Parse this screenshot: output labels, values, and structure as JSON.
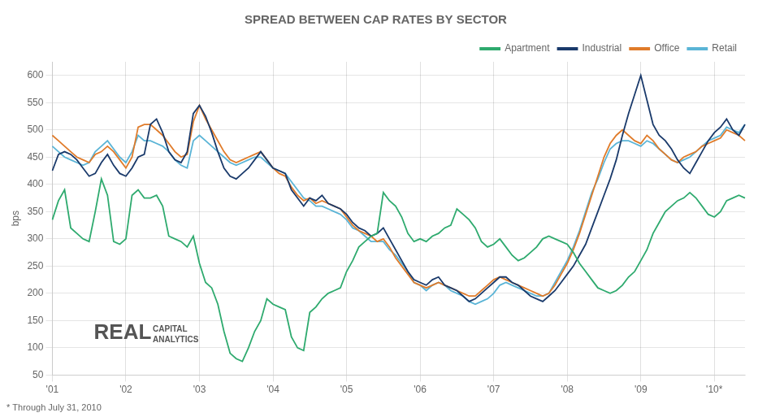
{
  "chart_data": {
    "type": "line",
    "title": "SPREAD BETWEEN CAP RATES BY SECTOR",
    "ylabel": "bps",
    "footnote": "* Through July 31, 2010",
    "annotations": [
      "REAL",
      "CAPITAL\nANALYTICS"
    ],
    "categories": [
      "'01",
      null,
      null,
      null,
      null,
      null,
      null,
      null,
      null,
      null,
      null,
      null,
      "'02",
      null,
      null,
      null,
      null,
      null,
      null,
      null,
      null,
      null,
      null,
      null,
      "'03",
      null,
      null,
      null,
      null,
      null,
      null,
      null,
      null,
      null,
      null,
      null,
      "'04",
      null,
      null,
      null,
      null,
      null,
      null,
      null,
      null,
      null,
      null,
      null,
      "'05",
      null,
      null,
      null,
      null,
      null,
      null,
      null,
      null,
      null,
      null,
      null,
      "'06",
      null,
      null,
      null,
      null,
      null,
      null,
      null,
      null,
      null,
      null,
      null,
      "'07",
      null,
      null,
      null,
      null,
      null,
      null,
      null,
      null,
      null,
      null,
      null,
      "'08",
      null,
      null,
      null,
      null,
      null,
      null,
      null,
      null,
      null,
      null,
      null,
      "'09",
      null,
      null,
      null,
      null,
      null,
      null,
      null,
      null,
      null,
      null,
      null,
      "'10*",
      null,
      null,
      null,
      null,
      null
    ],
    "ylim": [
      50,
      625
    ],
    "yticks": [
      50,
      100,
      150,
      200,
      250,
      300,
      350,
      400,
      450,
      500,
      550,
      600
    ],
    "grid": true,
    "legend": "upper right",
    "series": [
      {
        "name": "Apartment",
        "color": "#2eaa6e",
        "values": [
          335,
          370,
          390,
          320,
          310,
          300,
          295,
          350,
          410,
          380,
          295,
          290,
          300,
          380,
          390,
          375,
          375,
          380,
          360,
          305,
          300,
          295,
          285,
          305,
          255,
          220,
          210,
          180,
          130,
          90,
          80,
          75,
          100,
          130,
          150,
          190,
          180,
          175,
          170,
          120,
          100,
          95,
          165,
          175,
          190,
          200,
          205,
          210,
          240,
          260,
          285,
          295,
          305,
          310,
          385,
          370,
          360,
          340,
          310,
          295,
          300,
          295,
          305,
          310,
          320,
          325,
          355,
          345,
          335,
          320,
          295,
          285,
          290,
          300,
          285,
          270,
          260,
          265,
          275,
          285,
          300,
          305,
          300,
          295,
          290,
          275,
          255,
          240,
          225,
          210,
          205,
          200,
          205,
          215,
          230,
          240,
          260,
          280,
          310,
          330,
          350,
          360,
          370,
          375,
          385,
          375,
          360,
          345,
          340,
          350,
          370,
          375,
          380,
          375
        ]
      },
      {
        "name": "Industrial",
        "color": "#1a3a6b",
        "values": [
          425,
          455,
          460,
          455,
          445,
          430,
          415,
          420,
          440,
          455,
          435,
          420,
          415,
          430,
          450,
          455,
          510,
          520,
          495,
          460,
          445,
          440,
          460,
          530,
          545,
          525,
          495,
          460,
          430,
          415,
          410,
          420,
          430,
          445,
          460,
          445,
          430,
          425,
          420,
          390,
          375,
          360,
          375,
          370,
          380,
          365,
          360,
          355,
          345,
          330,
          320,
          315,
          305,
          310,
          320,
          300,
          280,
          260,
          240,
          225,
          220,
          215,
          225,
          230,
          215,
          210,
          205,
          195,
          185,
          190,
          200,
          210,
          220,
          230,
          230,
          220,
          215,
          205,
          195,
          190,
          185,
          195,
          205,
          220,
          235,
          250,
          270,
          290,
          320,
          350,
          380,
          410,
          445,
          490,
          530,
          565,
          600,
          555,
          510,
          490,
          480,
          465,
          445,
          430,
          420,
          440,
          460,
          480,
          495,
          505,
          520,
          500,
          490,
          510
        ]
      },
      {
        "name": "Office",
        "color": "#e07b2a",
        "values": [
          490,
          480,
          470,
          460,
          450,
          445,
          440,
          455,
          460,
          470,
          460,
          445,
          430,
          450,
          505,
          510,
          510,
          500,
          490,
          475,
          460,
          450,
          455,
          515,
          545,
          520,
          500,
          480,
          460,
          445,
          440,
          445,
          450,
          455,
          460,
          445,
          430,
          420,
          415,
          395,
          380,
          370,
          375,
          365,
          370,
          365,
          360,
          355,
          340,
          325,
          315,
          310,
          305,
          295,
          300,
          285,
          265,
          250,
          235,
          220,
          215,
          210,
          215,
          220,
          215,
          210,
          205,
          200,
          195,
          195,
          205,
          215,
          225,
          230,
          225,
          220,
          215,
          210,
          205,
          200,
          195,
          200,
          215,
          235,
          255,
          280,
          310,
          345,
          380,
          415,
          450,
          475,
          490,
          500,
          490,
          480,
          475,
          490,
          480,
          465,
          455,
          445,
          440,
          450,
          455,
          460,
          470,
          475,
          480,
          485,
          500,
          495,
          490,
          480
        ]
      },
      {
        "name": "Retail",
        "color": "#5ab4d6",
        "values": [
          470,
          460,
          450,
          445,
          440,
          435,
          440,
          460,
          470,
          480,
          465,
          450,
          440,
          460,
          490,
          480,
          480,
          475,
          470,
          460,
          445,
          435,
          430,
          480,
          490,
          480,
          470,
          460,
          450,
          440,
          435,
          440,
          445,
          450,
          450,
          440,
          430,
          425,
          420,
          405,
          390,
          375,
          370,
          360,
          360,
          355,
          350,
          345,
          335,
          320,
          315,
          305,
          295,
          295,
          295,
          280,
          270,
          255,
          240,
          220,
          215,
          205,
          215,
          220,
          215,
          205,
          200,
          195,
          185,
          180,
          185,
          190,
          200,
          215,
          220,
          215,
          210,
          205,
          200,
          195,
          195,
          200,
          220,
          240,
          260,
          285,
          315,
          350,
          385,
          410,
          440,
          465,
          475,
          480,
          480,
          475,
          470,
          480,
          475,
          465,
          455,
          445,
          440,
          445,
          450,
          460,
          470,
          480,
          485,
          490,
          505,
          500,
          495,
          510
        ]
      }
    ]
  }
}
